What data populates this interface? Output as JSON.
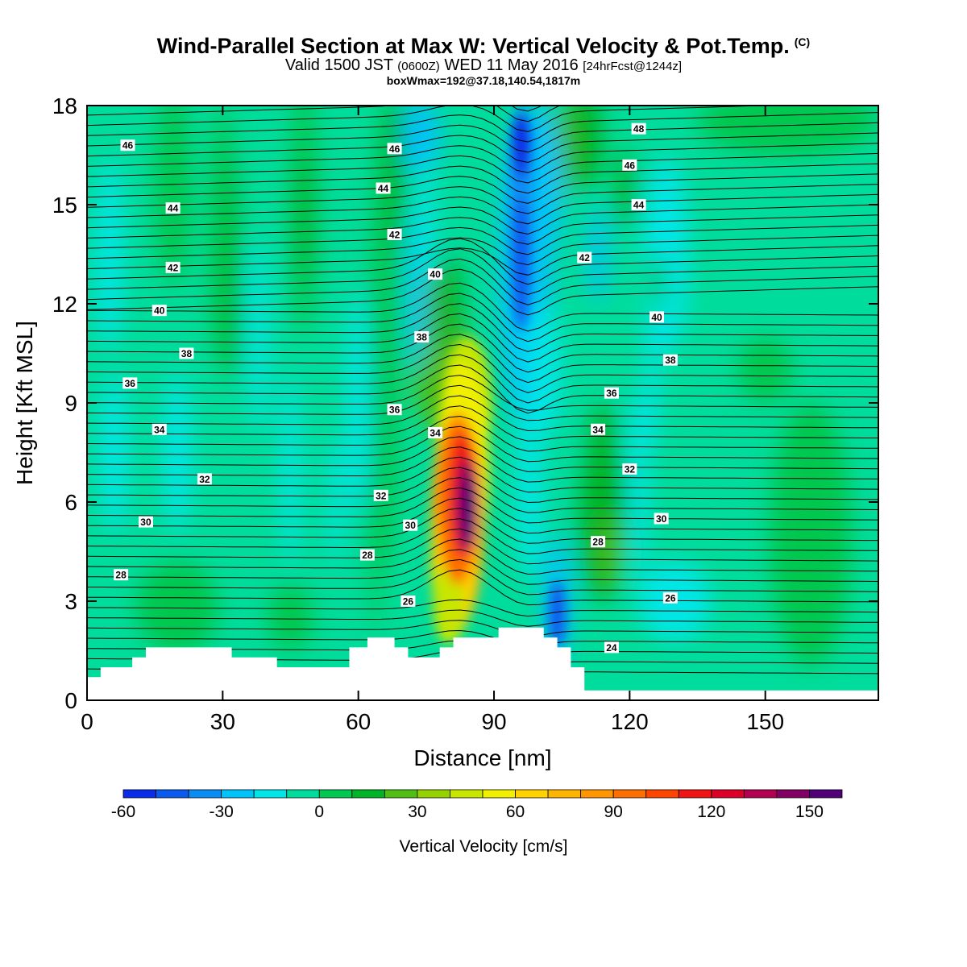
{
  "title": {
    "main": "Wind-Parallel Section at Max W: Vertical Velocity & Pot.Temp.",
    "main_suffix": "(C)",
    "valid_prefix": "Valid 1500 JST",
    "valid_utc": "(0600Z)",
    "valid_date": "WED 11 May 2016",
    "forecast": "[24hrFcst@1244z]",
    "boxwmax": "boxWmax=192@37.18,140.54,1817m"
  },
  "chart_data": {
    "type": "heatmap",
    "xlabel": "Distance [nm]",
    "ylabel": "Height [Kft MSL]",
    "xlim": [
      0,
      175
    ],
    "ylim": [
      0,
      18
    ],
    "xticks": [
      0,
      30,
      60,
      90,
      120,
      150
    ],
    "yticks": [
      0,
      3,
      6,
      9,
      12,
      15,
      18
    ],
    "xtick_labels": [
      "0",
      "30",
      "60",
      "90",
      "120",
      "150"
    ],
    "ytick_labels": [
      "0",
      "3",
      "6",
      "9",
      "12",
      "15",
      "18"
    ],
    "colorbar": {
      "title": "Vertical Velocity [cm/s]",
      "levels": [
        -60,
        -50,
        -40,
        -30,
        -20,
        -10,
        0,
        10,
        20,
        30,
        40,
        50,
        60,
        70,
        80,
        90,
        100,
        110,
        120,
        130,
        140,
        150,
        160
      ],
      "colors": [
        "#0a2ce8",
        "#0a5af0",
        "#0a8cf5",
        "#00c3fa",
        "#00e6e6",
        "#00dc9b",
        "#00c850",
        "#00b428",
        "#50be14",
        "#96d200",
        "#c8e600",
        "#f0f000",
        "#ffd200",
        "#ffb400",
        "#ff9600",
        "#ff6e00",
        "#ff4600",
        "#f01414",
        "#dc0028",
        "#b40050",
        "#820064",
        "#500078"
      ],
      "labels": [
        "-60",
        "-30",
        "0",
        "30",
        "60",
        "90",
        "120",
        "150"
      ],
      "label_values": [
        -60,
        -30,
        0,
        30,
        60,
        90,
        120,
        150
      ]
    },
    "field_features": [
      {
        "kind": "updraft-max",
        "x": 84,
        "y": 5.6,
        "value": 192
      },
      {
        "kind": "downdraft-upper",
        "x": 95,
        "y": 14,
        "value": -60
      },
      {
        "kind": "downdraft-lower",
        "x": 104,
        "y": 2.5,
        "value": -60
      }
    ],
    "terrain": [
      [
        0,
        0.7
      ],
      [
        3,
        0.7
      ],
      [
        3,
        1.0
      ],
      [
        10,
        1.0
      ],
      [
        10,
        1.3
      ],
      [
        13,
        1.3
      ],
      [
        13,
        1.6
      ],
      [
        32,
        1.6
      ],
      [
        32,
        1.3
      ],
      [
        42,
        1.3
      ],
      [
        42,
        1.0
      ],
      [
        58,
        1.0
      ],
      [
        58,
        1.6
      ],
      [
        62,
        1.6
      ],
      [
        62,
        1.9
      ],
      [
        68,
        1.9
      ],
      [
        68,
        1.6
      ],
      [
        71,
        1.6
      ],
      [
        71,
        1.3
      ],
      [
        78,
        1.3
      ],
      [
        78,
        1.6
      ],
      [
        81,
        1.6
      ],
      [
        81,
        1.9
      ],
      [
        91,
        1.9
      ],
      [
        91,
        2.2
      ],
      [
        101,
        2.2
      ],
      [
        101,
        1.9
      ],
      [
        104,
        1.9
      ],
      [
        104,
        1.6
      ],
      [
        107,
        1.6
      ],
      [
        107,
        1.0
      ],
      [
        110,
        1.0
      ],
      [
        110,
        0.3
      ],
      [
        175,
        0.3
      ]
    ],
    "isentropes": {
      "levels": [
        24,
        26,
        28,
        30,
        32,
        34,
        36,
        38,
        40,
        42,
        44,
        46,
        48
      ],
      "labels": [
        {
          "text": "46",
          "x": 9,
          "y": 16.8
        },
        {
          "text": "44",
          "x": 19,
          "y": 14.9
        },
        {
          "text": "42",
          "x": 19,
          "y": 13.1
        },
        {
          "text": "40",
          "x": 16,
          "y": 11.8
        },
        {
          "text": "38",
          "x": 22,
          "y": 10.5
        },
        {
          "text": "36",
          "x": 9.5,
          "y": 9.6
        },
        {
          "text": "34",
          "x": 16,
          "y": 8.2
        },
        {
          "text": "32",
          "x": 26,
          "y": 6.7
        },
        {
          "text": "30",
          "x": 13,
          "y": 5.4
        },
        {
          "text": "28",
          "x": 7.5,
          "y": 3.8
        },
        {
          "text": "46",
          "x": 68,
          "y": 16.7
        },
        {
          "text": "44",
          "x": 65.5,
          "y": 15.5
        },
        {
          "text": "42",
          "x": 68,
          "y": 14.1
        },
        {
          "text": "40",
          "x": 77,
          "y": 12.9
        },
        {
          "text": "38",
          "x": 74,
          "y": 11
        },
        {
          "text": "36",
          "x": 68,
          "y": 8.8
        },
        {
          "text": "34",
          "x": 77,
          "y": 8.1
        },
        {
          "text": "32",
          "x": 65,
          "y": 6.2
        },
        {
          "text": "30",
          "x": 71.5,
          "y": 5.3
        },
        {
          "text": "28",
          "x": 62,
          "y": 4.4
        },
        {
          "text": "26",
          "x": 71,
          "y": 3
        },
        {
          "text": "48",
          "x": 122,
          "y": 17.3
        },
        {
          "text": "46",
          "x": 120,
          "y": 16.2
        },
        {
          "text": "44",
          "x": 122,
          "y": 15
        },
        {
          "text": "42",
          "x": 110,
          "y": 13.4
        },
        {
          "text": "40",
          "x": 126,
          "y": 11.6
        },
        {
          "text": "38",
          "x": 129,
          "y": 10.3
        },
        {
          "text": "36",
          "x": 116,
          "y": 9.3
        },
        {
          "text": "34",
          "x": 113,
          "y": 8.2
        },
        {
          "text": "32",
          "x": 120,
          "y": 7
        },
        {
          "text": "30",
          "x": 127,
          "y": 5.5
        },
        {
          "text": "28",
          "x": 113,
          "y": 4.8
        },
        {
          "text": "26",
          "x": 129,
          "y": 3.1
        },
        {
          "text": "24",
          "x": 116,
          "y": 1.6
        }
      ]
    }
  }
}
